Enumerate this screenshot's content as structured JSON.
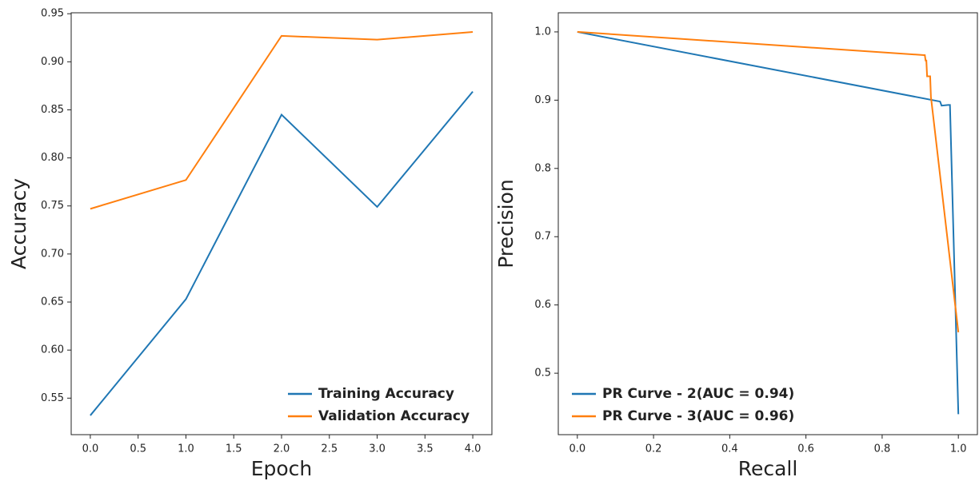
{
  "chart_data": [
    {
      "type": "line",
      "xlabel": "Epoch",
      "ylabel": "Accuracy",
      "x": [
        0,
        1,
        2,
        3,
        4
      ],
      "series": [
        {
          "name": "Training Accuracy",
          "color": "#1f77b4",
          "values": [
            0.532,
            0.653,
            0.845,
            0.749,
            0.869
          ]
        },
        {
          "name": "Validation Accuracy",
          "color": "#ff7f0e",
          "values": [
            0.747,
            0.777,
            0.927,
            0.923,
            0.931
          ]
        }
      ],
      "xlim": [
        -0.2,
        4.2
      ],
      "xticks": [
        {
          "value": 0,
          "label": "0.0"
        },
        0.5,
        {
          "value": 1,
          "label": "1.0"
        },
        1.5,
        {
          "value": 2,
          "label": "2.0"
        },
        2.5,
        {
          "value": 3,
          "label": "3.0"
        },
        3.5,
        {
          "value": 4,
          "label": "4.0"
        }
      ],
      "ylim": [
        0.512,
        0.951
      ],
      "yticks": [
        0.55,
        {
          "value": 0.6,
          "label": "0.60"
        },
        0.65,
        {
          "value": 0.7,
          "label": "0.70"
        },
        0.75,
        {
          "value": 0.8,
          "label": "0.80"
        },
        0.85,
        {
          "value": 0.9,
          "label": "0.90"
        },
        0.95
      ],
      "legend": "lower right"
    },
    {
      "type": "line",
      "xlabel": "Recall",
      "ylabel": "Precision",
      "series": [
        {
          "name": "PR Curve - 2(AUC = 0.94)",
          "color": "#1f77b4",
          "x": [
            0,
            0.952,
            0.956,
            0.973,
            0.978,
            1.0
          ],
          "values": [
            1.0,
            0.898,
            0.892,
            0.893,
            0.893,
            0.44
          ]
        },
        {
          "name": "PR Curve - 3(AUC = 0.96)",
          "color": "#ff7f0e",
          "x": [
            0,
            0.91,
            0.912,
            0.914,
            0.916,
            0.918,
            0.926,
            0.928,
            1.0
          ],
          "values": [
            1.0,
            0.966,
            0.966,
            0.958,
            0.958,
            0.935,
            0.935,
            0.905,
            0.56
          ]
        }
      ],
      "xlim": [
        -0.05,
        1.05
      ],
      "xticks": [
        {
          "value": 0,
          "label": "0.0"
        },
        0.2,
        0.4,
        0.6,
        0.8,
        {
          "value": 1,
          "label": "1.0"
        }
      ],
      "ylim": [
        0.41,
        1.028
      ],
      "yticks": [
        0.5,
        0.6,
        0.7,
        0.8,
        0.9,
        {
          "value": 1,
          "label": "1.0"
        }
      ],
      "legend": "lower left"
    }
  ]
}
